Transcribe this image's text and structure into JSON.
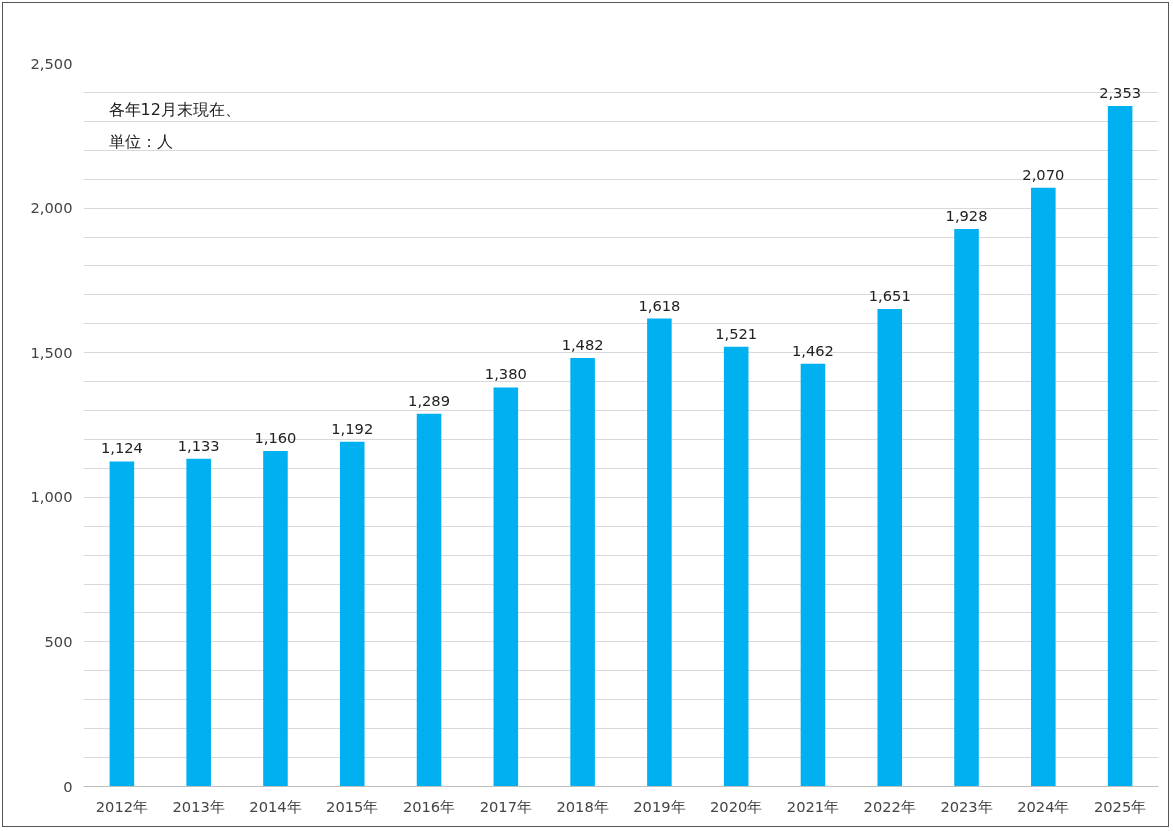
{
  "chart_data": {
    "type": "bar",
    "categories": [
      "2012年",
      "2013年",
      "2014年",
      "2015年",
      "2016年",
      "2017年",
      "2018年",
      "2019年",
      "2020年",
      "2021年",
      "2022年",
      "2023年",
      "2024年",
      "2025年"
    ],
    "values": [
      1124,
      1133,
      1160,
      1192,
      1289,
      1380,
      1482,
      1618,
      1521,
      1462,
      1651,
      1928,
      2070,
      2353
    ],
    "color": "#00b0f0",
    "ylim": [
      0,
      2500
    ],
    "yticks": [
      0,
      {
        "value": 100,
        "label": null
      },
      {
        "value": 200,
        "label": null
      },
      {
        "value": 300,
        "label": null
      },
      {
        "value": 400,
        "label": null
      },
      500,
      {
        "value": 600,
        "label": null
      },
      {
        "value": 700,
        "label": null
      },
      {
        "value": 800,
        "label": null
      },
      {
        "value": 900,
        "label": null
      },
      {
        "value": 1000,
        "label": "1,000"
      },
      {
        "value": 1100,
        "label": null
      },
      {
        "value": 1200,
        "label": null
      },
      {
        "value": 1300,
        "label": null
      },
      {
        "value": 1400,
        "label": null
      },
      {
        "value": 1500,
        "label": "1,500"
      },
      {
        "value": 1600,
        "label": null
      },
      {
        "value": 1700,
        "label": null
      },
      {
        "value": 1800,
        "label": null
      },
      {
        "value": 1900,
        "label": null
      },
      {
        "value": 2000,
        "label": "2,000"
      },
      {
        "value": 2100,
        "label": null
      },
      {
        "value": 2200,
        "label": null
      },
      {
        "value": 2300,
        "label": null
      },
      {
        "value": 2400,
        "label": null
      },
      {
        "value": 2500,
        "label": "2,500"
      }
    ],
    "grid": "y",
    "value_labels": [
      "1,124",
      "1,133",
      "1,160",
      "1,192",
      "1,289",
      "1,380",
      "1,482",
      "1,618",
      "1,521",
      "1,462",
      "1,651",
      "1,928",
      "2,070",
      "2,353"
    ],
    "annotations": [
      "各年12月末現在、",
      "単位：人"
    ]
  }
}
